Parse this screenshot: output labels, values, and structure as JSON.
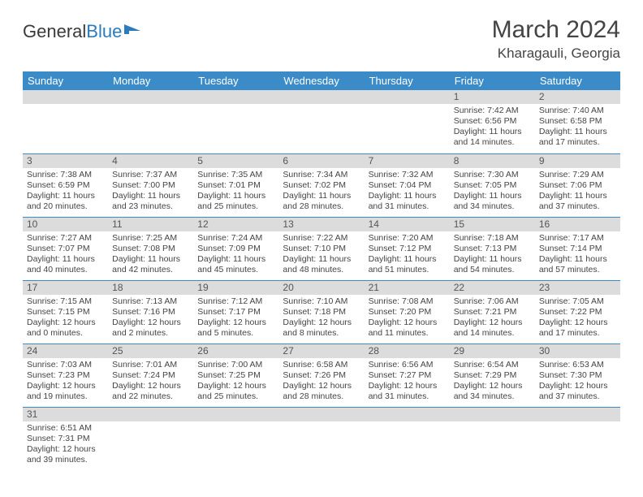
{
  "logo": {
    "text1": "General",
    "text2": "Blue"
  },
  "header": {
    "month": "March 2024",
    "location": "Kharagauli, Georgia"
  },
  "colors": {
    "header_bg": "#3b8bc9",
    "header_text": "#ffffff",
    "daynum_bg": "#dcdcdc",
    "row_divider": "#3b8bc9",
    "body_text": "#444444",
    "logo_blue": "#2b7bbf"
  },
  "day_headers": [
    "Sunday",
    "Monday",
    "Tuesday",
    "Wednesday",
    "Thursday",
    "Friday",
    "Saturday"
  ],
  "weeks": [
    [
      null,
      null,
      null,
      null,
      null,
      {
        "d": "1",
        "sr": "7:42 AM",
        "ss": "6:56 PM",
        "dl": "11 hours and 14 minutes."
      },
      {
        "d": "2",
        "sr": "7:40 AM",
        "ss": "6:58 PM",
        "dl": "11 hours and 17 minutes."
      }
    ],
    [
      {
        "d": "3",
        "sr": "7:38 AM",
        "ss": "6:59 PM",
        "dl": "11 hours and 20 minutes."
      },
      {
        "d": "4",
        "sr": "7:37 AM",
        "ss": "7:00 PM",
        "dl": "11 hours and 23 minutes."
      },
      {
        "d": "5",
        "sr": "7:35 AM",
        "ss": "7:01 PM",
        "dl": "11 hours and 25 minutes."
      },
      {
        "d": "6",
        "sr": "7:34 AM",
        "ss": "7:02 PM",
        "dl": "11 hours and 28 minutes."
      },
      {
        "d": "7",
        "sr": "7:32 AM",
        "ss": "7:04 PM",
        "dl": "11 hours and 31 minutes."
      },
      {
        "d": "8",
        "sr": "7:30 AM",
        "ss": "7:05 PM",
        "dl": "11 hours and 34 minutes."
      },
      {
        "d": "9",
        "sr": "7:29 AM",
        "ss": "7:06 PM",
        "dl": "11 hours and 37 minutes."
      }
    ],
    [
      {
        "d": "10",
        "sr": "7:27 AM",
        "ss": "7:07 PM",
        "dl": "11 hours and 40 minutes."
      },
      {
        "d": "11",
        "sr": "7:25 AM",
        "ss": "7:08 PM",
        "dl": "11 hours and 42 minutes."
      },
      {
        "d": "12",
        "sr": "7:24 AM",
        "ss": "7:09 PM",
        "dl": "11 hours and 45 minutes."
      },
      {
        "d": "13",
        "sr": "7:22 AM",
        "ss": "7:10 PM",
        "dl": "11 hours and 48 minutes."
      },
      {
        "d": "14",
        "sr": "7:20 AM",
        "ss": "7:12 PM",
        "dl": "11 hours and 51 minutes."
      },
      {
        "d": "15",
        "sr": "7:18 AM",
        "ss": "7:13 PM",
        "dl": "11 hours and 54 minutes."
      },
      {
        "d": "16",
        "sr": "7:17 AM",
        "ss": "7:14 PM",
        "dl": "11 hours and 57 minutes."
      }
    ],
    [
      {
        "d": "17",
        "sr": "7:15 AM",
        "ss": "7:15 PM",
        "dl": "12 hours and 0 minutes."
      },
      {
        "d": "18",
        "sr": "7:13 AM",
        "ss": "7:16 PM",
        "dl": "12 hours and 2 minutes."
      },
      {
        "d": "19",
        "sr": "7:12 AM",
        "ss": "7:17 PM",
        "dl": "12 hours and 5 minutes."
      },
      {
        "d": "20",
        "sr": "7:10 AM",
        "ss": "7:18 PM",
        "dl": "12 hours and 8 minutes."
      },
      {
        "d": "21",
        "sr": "7:08 AM",
        "ss": "7:20 PM",
        "dl": "12 hours and 11 minutes."
      },
      {
        "d": "22",
        "sr": "7:06 AM",
        "ss": "7:21 PM",
        "dl": "12 hours and 14 minutes."
      },
      {
        "d": "23",
        "sr": "7:05 AM",
        "ss": "7:22 PM",
        "dl": "12 hours and 17 minutes."
      }
    ],
    [
      {
        "d": "24",
        "sr": "7:03 AM",
        "ss": "7:23 PM",
        "dl": "12 hours and 19 minutes."
      },
      {
        "d": "25",
        "sr": "7:01 AM",
        "ss": "7:24 PM",
        "dl": "12 hours and 22 minutes."
      },
      {
        "d": "26",
        "sr": "7:00 AM",
        "ss": "7:25 PM",
        "dl": "12 hours and 25 minutes."
      },
      {
        "d": "27",
        "sr": "6:58 AM",
        "ss": "7:26 PM",
        "dl": "12 hours and 28 minutes."
      },
      {
        "d": "28",
        "sr": "6:56 AM",
        "ss": "7:27 PM",
        "dl": "12 hours and 31 minutes."
      },
      {
        "d": "29",
        "sr": "6:54 AM",
        "ss": "7:29 PM",
        "dl": "12 hours and 34 minutes."
      },
      {
        "d": "30",
        "sr": "6:53 AM",
        "ss": "7:30 PM",
        "dl": "12 hours and 37 minutes."
      }
    ],
    [
      {
        "d": "31",
        "sr": "6:51 AM",
        "ss": "7:31 PM",
        "dl": "12 hours and 39 minutes."
      },
      null,
      null,
      null,
      null,
      null,
      null
    ]
  ],
  "labels": {
    "sunrise": "Sunrise:",
    "sunset": "Sunset:",
    "daylight": "Daylight:"
  }
}
